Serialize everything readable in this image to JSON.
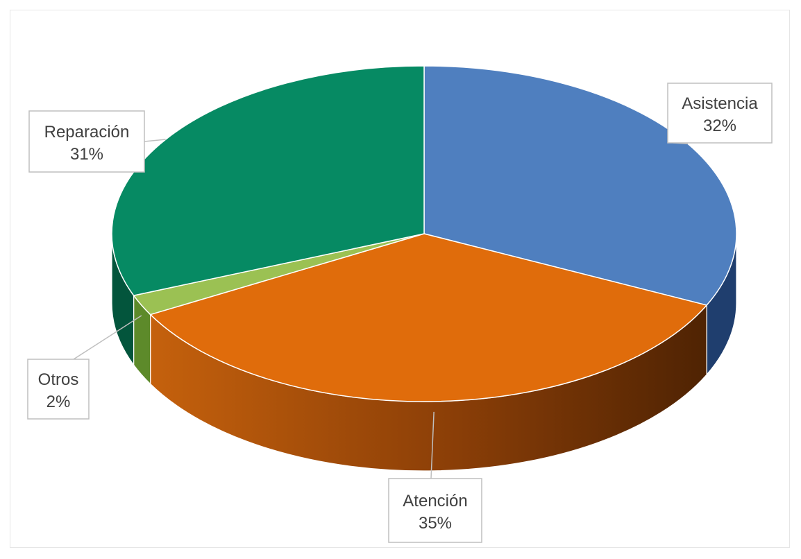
{
  "chart_data": {
    "type": "pie",
    "variant": "3d",
    "title": "",
    "slices": [
      {
        "category": "Asistencia",
        "value": 32,
        "label": "32%",
        "color": "#4f7fbf",
        "side_color": "#1f3e6e"
      },
      {
        "category": "Atención",
        "value": 35,
        "label": "35%",
        "color": "#e06c0b",
        "side_color": "#7a3606"
      },
      {
        "category": "Otros",
        "value": 2,
        "label": "2%",
        "color": "#9bc153",
        "side_color": "#5d8a2a"
      },
      {
        "category": "Reparación",
        "value": 31,
        "label": "31%",
        "color": "#068a63",
        "side_color": "#03553c"
      }
    ],
    "legend": "none",
    "data_labels": "callouts"
  }
}
